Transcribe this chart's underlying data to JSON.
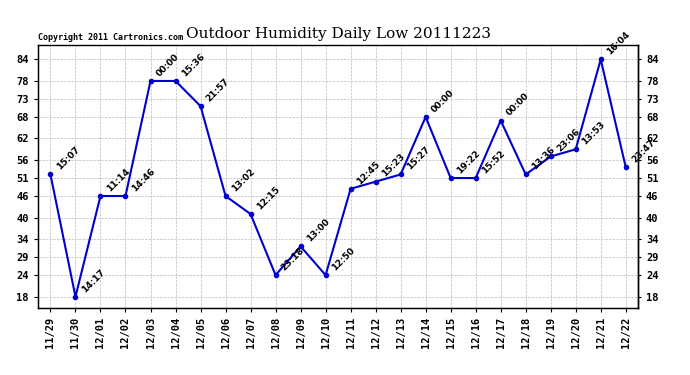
{
  "title": "Outdoor Humidity Daily Low 20111223",
  "copyright": "Copyright 2011 Cartronics.com",
  "x_labels": [
    "11/29",
    "11/30",
    "12/01",
    "12/02",
    "12/03",
    "12/04",
    "12/05",
    "12/06",
    "12/07",
    "12/08",
    "12/09",
    "12/10",
    "12/11",
    "12/12",
    "12/13",
    "12/14",
    "12/15",
    "12/16",
    "12/17",
    "12/18",
    "12/19",
    "12/20",
    "12/21",
    "12/22"
  ],
  "y_values": [
    52,
    18,
    46,
    46,
    78,
    78,
    71,
    46,
    41,
    24,
    32,
    24,
    48,
    50,
    52,
    68,
    51,
    51,
    67,
    52,
    57,
    59,
    84,
    54
  ],
  "point_labels": [
    "15:07",
    "14:17",
    "11:14",
    "14:46",
    "00:00",
    "15:36",
    "21:57",
    "13:02",
    "12:15",
    "23:18",
    "13:00",
    "12:50",
    "12:45",
    "15:23",
    "15:27",
    "00:00",
    "19:22",
    "15:52",
    "00:00",
    "13:36",
    "23:06",
    "13:53",
    "16:04",
    "23:47"
  ],
  "line_color": "#0000cc",
  "marker_color": "#0000cc",
  "bg_color": "#ffffff",
  "grid_color": "#bbbbbb",
  "ylim": [
    15,
    88
  ],
  "yticks": [
    18,
    24,
    29,
    34,
    40,
    46,
    51,
    56,
    62,
    68,
    73,
    78,
    84
  ],
  "title_fontsize": 11,
  "label_fontsize": 6.5,
  "copyright_fontsize": 6,
  "tick_fontsize": 7.5
}
